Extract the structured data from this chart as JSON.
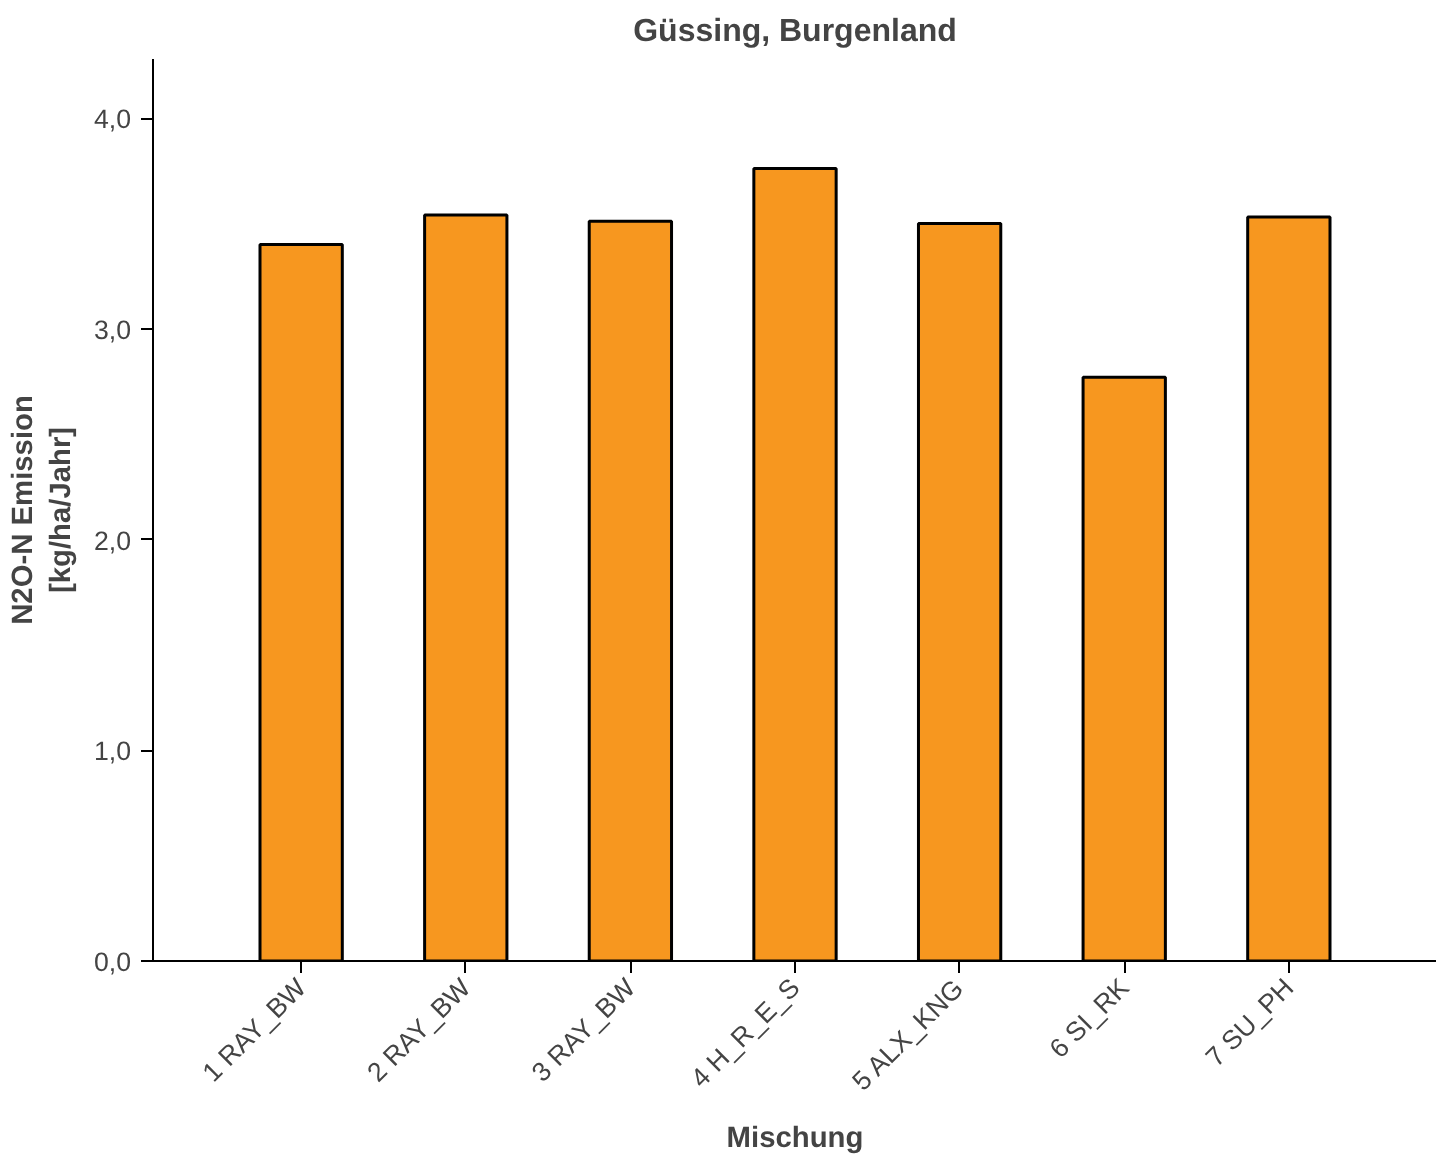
{
  "chart_data": {
    "type": "bar",
    "title": "Güssing, Burgenland",
    "xlabel": "Mischung",
    "ylabel": "N2O-N Emission\n[kg/ha/Jahr]",
    "categories": [
      "1 RAY_BW",
      "2 RAY_BW",
      "3 RAY_BW",
      "4 H_R_E_S",
      "5 ALX_KNG",
      "6 SI_RK",
      "7 SU_PH"
    ],
    "values": [
      3.4,
      3.54,
      3.51,
      3.76,
      3.5,
      2.77,
      3.53
    ],
    "color": "#f7971f",
    "ylim": [
      0,
      4.28
    ],
    "yticks": [
      {
        "value": 0,
        "label": "0,0"
      },
      {
        "value": 1,
        "label": "1,0"
      },
      {
        "value": 2,
        "label": "2,0"
      },
      {
        "value": 3,
        "label": "3,0"
      },
      {
        "value": 4,
        "label": "4,0"
      }
    ],
    "grid": false
  }
}
